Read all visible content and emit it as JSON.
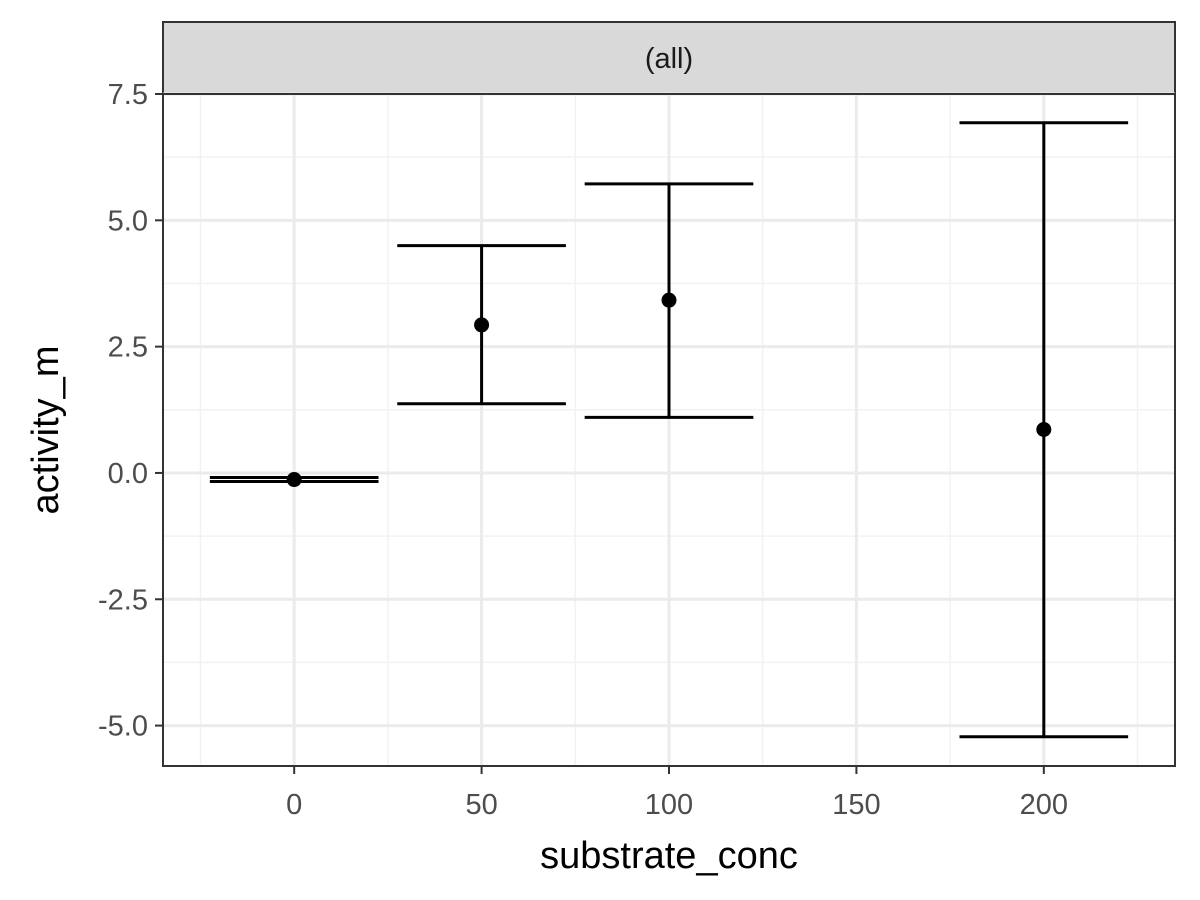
{
  "chart_data": {
    "type": "scatter",
    "subtype": "point-errorbar",
    "facet_label": "(all)",
    "xlabel": "substrate_conc",
    "ylabel": "activity_m",
    "xlim": [
      -35,
      235
    ],
    "ylim": [
      -5.8,
      7.5
    ],
    "x_ticks": [
      0,
      50,
      100,
      150,
      200
    ],
    "x_tick_labels": [
      "0",
      "50",
      "100",
      "150",
      "200"
    ],
    "y_ticks": [
      -5.0,
      -2.5,
      0.0,
      2.5,
      5.0,
      7.5
    ],
    "y_tick_labels": [
      "-5.0",
      "-2.5",
      "0.0",
      "2.5",
      "5.0",
      "7.5"
    ],
    "errorbar_halfwidth": 22.5,
    "points": [
      {
        "x": 0,
        "y": -0.13,
        "ymin": -0.17,
        "ymax": -0.09
      },
      {
        "x": 50,
        "y": 2.93,
        "ymin": 1.37,
        "ymax": 4.5
      },
      {
        "x": 100,
        "y": 3.42,
        "ymin": 1.1,
        "ymax": 5.72
      },
      {
        "x": 200,
        "y": 0.86,
        "ymin": -5.22,
        "ymax": 6.93
      }
    ],
    "grid": true,
    "theme": "bw",
    "colors": {
      "strip_fill": "#d9d9d9",
      "panel_border": "#333333",
      "grid_major": "#ebebeb",
      "grid_minor": "#f2f2f2",
      "marks": "#000000"
    }
  }
}
